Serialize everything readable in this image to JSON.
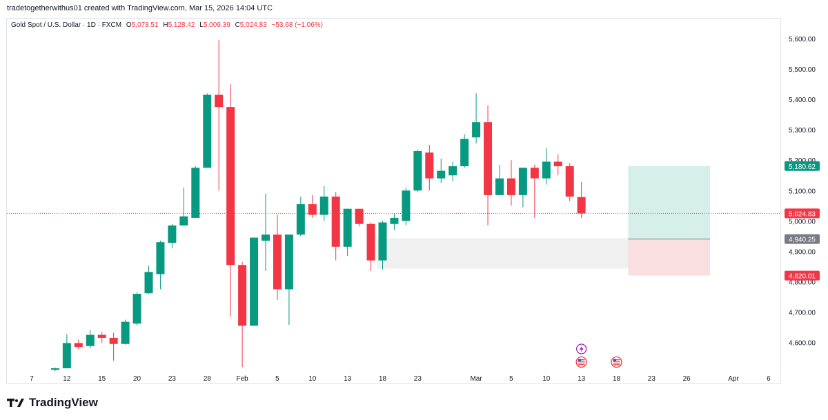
{
  "header": {
    "author_line": "tradetogetherwithus01 created with TradingView.com, Mar 15, 2026 14:04 UTC"
  },
  "legend": {
    "symbol": "Gold Spot / U.S. Dollar · 1D · FXCM",
    "o_label": "O",
    "o_value": "5,078.51",
    "h_label": "H",
    "h_value": "5,128.42",
    "l_label": "L",
    "l_value": "5,009.39",
    "c_label": "C",
    "c_value": "5,024.83",
    "change": "−53.68 (−1.06%)"
  },
  "brand": {
    "name": "TradingView",
    "logo_icon": "tradingview-logo-icon"
  },
  "colors": {
    "up": "#089981",
    "down": "#f23645",
    "profit_zone": "#d6efe9",
    "loss_zone": "#f9dfdf",
    "demand_zone": "#f0f0f0"
  },
  "chart_data": {
    "type": "candlestick",
    "x_labels": [
      {
        "label": "7",
        "i": 0
      },
      {
        "label": "12",
        "i": 3
      },
      {
        "label": "15",
        "i": 6
      },
      {
        "label": "20",
        "i": 9
      },
      {
        "label": "23",
        "i": 12
      },
      {
        "label": "28",
        "i": 15
      },
      {
        "label": "Feb",
        "i": 18
      },
      {
        "label": "5",
        "i": 21
      },
      {
        "label": "10",
        "i": 24
      },
      {
        "label": "13",
        "i": 27
      },
      {
        "label": "18",
        "i": 30
      },
      {
        "label": "23",
        "i": 33
      },
      {
        "label": "Mar",
        "i": 38
      },
      {
        "label": "5",
        "i": 41
      },
      {
        "label": "10",
        "i": 44
      },
      {
        "label": "13",
        "i": 47
      },
      {
        "label": "18",
        "i": 50
      },
      {
        "label": "23",
        "i": 53
      },
      {
        "label": "26",
        "i": 56
      },
      {
        "label": "Apr",
        "i": 60
      },
      {
        "label": "6",
        "i": 63
      }
    ],
    "y_ticks": [
      "4,600.00",
      "4,700.00",
      "4,800.00",
      "4,900.00",
      "5,000.00",
      "5,100.00",
      "5,200.00",
      "5,300.00",
      "5,400.00",
      "5,500.00",
      "5,600.00"
    ],
    "y_tick_values": [
      4600,
      4700,
      4800,
      4900,
      5000,
      5100,
      5200,
      5300,
      5400,
      5500,
      5600
    ],
    "ylim": [
      4515,
      5625
    ],
    "candles": [
      {
        "i": 2,
        "o": 4510,
        "h": 4518,
        "l": 4505,
        "c": 4515
      },
      {
        "i": 3,
        "o": 4515,
        "h": 4628,
        "l": 4515,
        "c": 4598
      },
      {
        "i": 4,
        "o": 4598,
        "h": 4610,
        "l": 4578,
        "c": 4585
      },
      {
        "i": 5,
        "o": 4588,
        "h": 4640,
        "l": 4580,
        "c": 4625
      },
      {
        "i": 6,
        "o": 4625,
        "h": 4635,
        "l": 4598,
        "c": 4615
      },
      {
        "i": 7,
        "o": 4615,
        "h": 4632,
        "l": 4540,
        "c": 4595
      },
      {
        "i": 8,
        "o": 4595,
        "h": 4675,
        "l": 4593,
        "c": 4668
      },
      {
        "i": 9,
        "o": 4662,
        "h": 4765,
        "l": 4655,
        "c": 4760
      },
      {
        "i": 10,
        "o": 4762,
        "h": 4852,
        "l": 4760,
        "c": 4832
      },
      {
        "i": 11,
        "o": 4825,
        "h": 4935,
        "l": 4775,
        "c": 4930
      },
      {
        "i": 12,
        "o": 4928,
        "h": 4990,
        "l": 4910,
        "c": 4985
      },
      {
        "i": 13,
        "o": 4985,
        "h": 5110,
        "l": 4985,
        "c": 5015
      },
      {
        "i": 14,
        "o": 5010,
        "h": 5180,
        "l": 5010,
        "c": 5175
      },
      {
        "i": 15,
        "o": 5175,
        "h": 5420,
        "l": 5175,
        "c": 5415
      },
      {
        "i": 16,
        "o": 5415,
        "h": 5595,
        "l": 5100,
        "c": 5375
      },
      {
        "i": 17,
        "o": 5375,
        "h": 5450,
        "l": 4685,
        "c": 4855
      },
      {
        "i": 18,
        "o": 4855,
        "h": 4865,
        "l": 4518,
        "c": 4655
      },
      {
        "i": 19,
        "o": 4655,
        "h": 4945,
        "l": 4655,
        "c": 4945
      },
      {
        "i": 20,
        "o": 4935,
        "h": 5090,
        "l": 4835,
        "c": 4955
      },
      {
        "i": 21,
        "o": 4955,
        "h": 5020,
        "l": 4740,
        "c": 4775
      },
      {
        "i": 22,
        "o": 4775,
        "h": 4955,
        "l": 4658,
        "c": 4955
      },
      {
        "i": 23,
        "o": 4955,
        "h": 5080,
        "l": 4950,
        "c": 5055
      },
      {
        "i": 24,
        "o": 5055,
        "h": 5085,
        "l": 5010,
        "c": 5020
      },
      {
        "i": 25,
        "o": 5020,
        "h": 5115,
        "l": 5000,
        "c": 5080
      },
      {
        "i": 26,
        "o": 5080,
        "h": 5095,
        "l": 4870,
        "c": 4915
      },
      {
        "i": 27,
        "o": 4915,
        "h": 5040,
        "l": 4885,
        "c": 5040
      },
      {
        "i": 28,
        "o": 5040,
        "h": 5040,
        "l": 4982,
        "c": 4990
      },
      {
        "i": 29,
        "o": 4990,
        "h": 4995,
        "l": 4835,
        "c": 4870
      },
      {
        "i": 30,
        "o": 4870,
        "h": 5000,
        "l": 4840,
        "c": 4995
      },
      {
        "i": 31,
        "o": 4990,
        "h": 5025,
        "l": 4970,
        "c": 5010
      },
      {
        "i": 32,
        "o": 5000,
        "h": 5110,
        "l": 4985,
        "c": 5100
      },
      {
        "i": 33,
        "o": 5100,
        "h": 5235,
        "l": 5095,
        "c": 5230
      },
      {
        "i": 34,
        "o": 5225,
        "h": 5250,
        "l": 5100,
        "c": 5140
      },
      {
        "i": 35,
        "o": 5140,
        "h": 5205,
        "l": 5125,
        "c": 5165
      },
      {
        "i": 36,
        "o": 5150,
        "h": 5195,
        "l": 5130,
        "c": 5180
      },
      {
        "i": 37,
        "o": 5180,
        "h": 5285,
        "l": 5175,
        "c": 5270
      },
      {
        "i": 38,
        "o": 5275,
        "h": 5420,
        "l": 5255,
        "c": 5325
      },
      {
        "i": 39,
        "o": 5325,
        "h": 5380,
        "l": 4985,
        "c": 5085
      },
      {
        "i": 40,
        "o": 5085,
        "h": 5185,
        "l": 5085,
        "c": 5140
      },
      {
        "i": 41,
        "o": 5140,
        "h": 5200,
        "l": 5050,
        "c": 5085
      },
      {
        "i": 42,
        "o": 5085,
        "h": 5175,
        "l": 5045,
        "c": 5175
      },
      {
        "i": 43,
        "o": 5175,
        "h": 5185,
        "l": 5010,
        "c": 5140
      },
      {
        "i": 44,
        "o": 5140,
        "h": 5240,
        "l": 5120,
        "c": 5195
      },
      {
        "i": 45,
        "o": 5195,
        "h": 5220,
        "l": 5150,
        "c": 5180
      },
      {
        "i": 46,
        "o": 5180,
        "h": 5190,
        "l": 5065,
        "c": 5080
      },
      {
        "i": 47,
        "o": 5078.51,
        "h": 5128.42,
        "l": 5009.39,
        "c": 5024.83
      }
    ],
    "current_price_line": 5024.83,
    "price_tags": [
      {
        "label": "5,180.62",
        "value": 5180.62,
        "color": "#089981"
      },
      {
        "label": "5,024.83",
        "value": 5024.83,
        "color": "#f23645"
      },
      {
        "label": "4,940.25",
        "value": 4940.25,
        "color": "#787b86"
      },
      {
        "label": "4,820.01",
        "value": 4820.01,
        "color": "#f23645"
      }
    ],
    "position": {
      "i_start": 51,
      "i_end": 58,
      "target": 5180.62,
      "entry": 4940.25,
      "stop": 4820.01
    },
    "demand_zone": {
      "i_start": 29.5,
      "i_end": 51,
      "top": 4943,
      "bottom": 4843
    },
    "event_icons": [
      {
        "i": 47,
        "row": 0,
        "type": "lightning-event-icon"
      },
      {
        "i": 47,
        "row": 1,
        "type": "us-flag-event-icon"
      },
      {
        "i": 50,
        "row": 1,
        "type": "us-flag-event-icon"
      }
    ]
  }
}
